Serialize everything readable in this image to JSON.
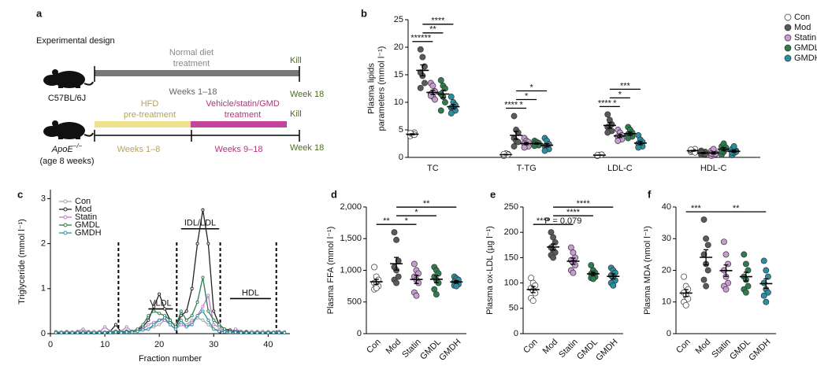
{
  "design": {
    "panel": "a",
    "title": "Experimental design",
    "wild_type": {
      "strain": "C57BL/6J",
      "treatment": [
        "Normal diet",
        "treatment"
      ],
      "kill": "Kill",
      "period": "Weeks 1–18",
      "end": "Week 18"
    },
    "knockout": {
      "strain": "ApoE",
      "strain_sup": "−/−",
      "age": "(age 8 weeks)",
      "pre": [
        "HFD",
        "pre-treatment"
      ],
      "pre_period": "Weeks 1–8",
      "treatment": [
        "Vehicle/statin/GMD",
        "treatment"
      ],
      "treatment_period": "Weeks 9–18",
      "kill": "Kill",
      "end": "Week 18"
    }
  },
  "chart_data": [
    {
      "type": "grouped_dot",
      "panel": "b",
      "ylabel": [
        "Plasma lipids",
        "parameters (mmol l⁻¹)"
      ],
      "categories": [
        "TC",
        "T-TG",
        "LDL-C",
        "HDL-C"
      ],
      "ylim": [
        0,
        25
      ],
      "yticks": [
        0,
        5,
        10,
        15,
        20,
        25
      ],
      "series": [
        {
          "name": "Con",
          "color": "#ffffff",
          "values": [
            4.2,
            0.5,
            0.4,
            1.2
          ],
          "sem": [
            0.1,
            0.05,
            0.03,
            0.08
          ],
          "points": [
            [
              4.0,
              4.3,
              4.5,
              3.9,
              4.2,
              4.1,
              4.4
            ],
            [
              0.3,
              0.5,
              0.6,
              0.4,
              0.7,
              0.5,
              0.6
            ],
            [
              0.3,
              0.4,
              0.5,
              0.3,
              0.4,
              0.5,
              0.4
            ],
            [
              1.0,
              1.2,
              1.5,
              1.3,
              1.1,
              0.9,
              1.4
            ]
          ]
        },
        {
          "name": "Mod",
          "color": "#5a5a5a",
          "values": [
            15.8,
            4.0,
            5.8,
            0.8
          ],
          "sem": [
            1.0,
            0.7,
            0.5,
            0.1
          ],
          "points": [
            [
              19.6,
              18.2,
              16.5,
              15.4,
              14.8,
              13.5,
              12.6
            ],
            [
              7.5,
              5.0,
              4.5,
              3.5,
              3.0,
              2.8,
              2.0
            ],
            [
              7.8,
              6.8,
              6.0,
              5.5,
              5.0,
              4.8,
              4.5
            ],
            [
              0.5,
              0.8,
              1.0,
              1.2,
              0.7,
              0.6,
              0.9
            ]
          ]
        },
        {
          "name": "Statin",
          "color": "#c99bd3",
          "values": [
            11.8,
            2.5,
            3.9,
            0.8
          ],
          "sem": [
            0.4,
            0.2,
            0.3,
            0.2
          ],
          "points": [
            [
              13.5,
              13.0,
              12.0,
              11.5,
              11.0,
              10.5,
              11.2
            ],
            [
              3.5,
              3.0,
              2.8,
              2.5,
              2.2,
              2.0,
              1.8
            ],
            [
              5.0,
              4.5,
              4.0,
              3.8,
              3.5,
              3.3,
              3.0
            ],
            [
              0.3,
              0.5,
              0.8,
              1.2,
              1.5,
              0.6,
              0.7
            ]
          ]
        },
        {
          "name": "GMDL",
          "color": "#2e7d4f",
          "values": [
            11.5,
            2.5,
            4.3,
            1.5
          ],
          "sem": [
            0.7,
            0.1,
            0.3,
            0.3
          ],
          "points": [
            [
              14.0,
              13.0,
              12.5,
              11.5,
              11.0,
              10.0,
              8.5
            ],
            [
              3.0,
              2.8,
              2.6,
              2.4,
              2.3,
              2.2,
              2.1
            ],
            [
              5.5,
              5.0,
              4.5,
              4.2,
              4.0,
              3.8,
              3.5
            ],
            [
              0.5,
              1.0,
              1.5,
              2.0,
              2.5,
              1.8,
              1.2
            ]
          ]
        },
        {
          "name": "GMDH",
          "color": "#2b8fa3",
          "values": [
            9.2,
            2.2,
            2.6,
            1.1
          ],
          "sem": [
            0.4,
            0.3,
            0.3,
            0.2
          ],
          "points": [
            [
              11.0,
              10.0,
              9.5,
              9.0,
              8.8,
              8.5,
              8.0
            ],
            [
              3.5,
              3.0,
              2.4,
              2.0,
              1.8,
              1.5,
              1.2
            ],
            [
              4.0,
              3.2,
              2.8,
              2.5,
              2.2,
              2.0,
              1.8
            ],
            [
              0.4,
              0.8,
              1.2,
              1.5,
              2.0,
              1.0,
              0.9
            ]
          ]
        }
      ],
      "significance": [
        {
          "category": "TC",
          "pair": [
            "Con",
            "Mod"
          ],
          "label": "****"
        },
        {
          "category": "TC",
          "pair": [
            "Mod",
            "Statin"
          ],
          "label": "**"
        },
        {
          "category": "TC",
          "pair": [
            "Mod",
            "GMDL"
          ],
          "label": "**"
        },
        {
          "category": "TC",
          "pair": [
            "Mod",
            "GMDH"
          ],
          "label": "****"
        },
        {
          "category": "T-TG",
          "pair": [
            "Con",
            "Mod"
          ],
          "label": "****"
        },
        {
          "category": "T-TG",
          "pair": [
            "Mod",
            "Statin"
          ],
          "label": "*"
        },
        {
          "category": "T-TG",
          "pair": [
            "Mod",
            "GMDL"
          ],
          "label": "*"
        },
        {
          "category": "T-TG",
          "pair": [
            "Mod",
            "GMDH"
          ],
          "label": "*"
        },
        {
          "category": "LDL-C",
          "pair": [
            "Con",
            "Mod"
          ],
          "label": "****"
        },
        {
          "category": "LDL-C",
          "pair": [
            "Mod",
            "Statin"
          ],
          "label": "*"
        },
        {
          "category": "LDL-C",
          "pair": [
            "Mod",
            "GMDL"
          ],
          "label": "*"
        },
        {
          "category": "LDL-C",
          "pair": [
            "Mod",
            "GMDH"
          ],
          "label": "***"
        }
      ]
    },
    {
      "type": "line",
      "panel": "c",
      "ylabel": "Triglyceride (mmol l⁻¹)",
      "xlabel": "Fraction number",
      "xlim": [
        0,
        44
      ],
      "xticks": [
        0,
        10,
        20,
        30,
        40
      ],
      "ylim": [
        0,
        3.2
      ],
      "yticks": [
        0,
        1,
        2,
        3
      ],
      "x": [
        1,
        2,
        3,
        4,
        5,
        6,
        7,
        8,
        9,
        10,
        11,
        12,
        13,
        14,
        15,
        16,
        17,
        18,
        19,
        20,
        21,
        22,
        23,
        24,
        25,
        26,
        27,
        28,
        29,
        30,
        31,
        32,
        33,
        34,
        35,
        36,
        37,
        38,
        39,
        40,
        41,
        42,
        43
      ],
      "series": [
        {
          "name": "Con",
          "color": "#a6a6a6",
          "values": [
            0.05,
            0.04,
            0.05,
            0.04,
            0.05,
            0.04,
            0.05,
            0.04,
            0.05,
            0.04,
            0.05,
            0.06,
            0.05,
            0.06,
            0.05,
            0.06,
            0.08,
            0.1,
            0.15,
            0.2,
            0.3,
            0.25,
            0.2,
            0.25,
            0.2,
            0.3,
            0.35,
            0.3,
            0.2,
            0.1,
            0.08,
            0.06,
            0.05,
            0.05,
            0.04,
            0.05,
            0.04,
            0.05,
            0.04,
            0.05,
            0.04,
            0.05,
            0.04
          ]
        },
        {
          "name": "Mod",
          "color": "#222222",
          "values": [
            0.02,
            0.02,
            0.03,
            0.02,
            0.03,
            0.02,
            0.03,
            0.02,
            0.03,
            0.02,
            0.05,
            0.2,
            0.03,
            0.05,
            0.05,
            0.08,
            0.15,
            0.3,
            0.6,
            0.88,
            0.55,
            0.3,
            0.15,
            0.4,
            0.5,
            1.0,
            2.0,
            2.75,
            2.0,
            0.5,
            0.2,
            0.1,
            0.08,
            0.05,
            0.05,
            0.04,
            0.03,
            0.03,
            0.03,
            0.02,
            0.02,
            0.02,
            0.02
          ]
        },
        {
          "name": "Statin",
          "color": "#b77cc6",
          "values": [
            0.03,
            0.03,
            0.05,
            0.03,
            0.05,
            0.1,
            0.03,
            0.05,
            0.03,
            0.15,
            0.05,
            0.03,
            0.05,
            0.15,
            0.05,
            0.08,
            0.1,
            0.2,
            0.25,
            0.3,
            0.3,
            0.2,
            0.1,
            0.2,
            0.15,
            0.25,
            0.4,
            0.6,
            0.85,
            0.2,
            0.15,
            0.05,
            0.05,
            0.1,
            0.05,
            0.03,
            0.05,
            0.03,
            0.05,
            0.03,
            0.03,
            0.05,
            0.03
          ]
        },
        {
          "name": "GMDL",
          "color": "#2e7d4f",
          "values": [
            0.03,
            0.02,
            0.03,
            0.02,
            0.03,
            0.02,
            0.03,
            0.02,
            0.03,
            0.02,
            0.03,
            0.05,
            0.03,
            0.05,
            0.05,
            0.1,
            0.2,
            0.4,
            0.5,
            0.45,
            0.4,
            0.3,
            0.15,
            0.5,
            0.3,
            0.4,
            0.7,
            1.25,
            0.5,
            0.3,
            0.2,
            0.1,
            0.05,
            0.04,
            0.03,
            0.03,
            0.02,
            0.03,
            0.02,
            0.03,
            0.02,
            0.03,
            0.02
          ]
        },
        {
          "name": "GMDH",
          "color": "#2b8fa3",
          "values": [
            0.02,
            0.02,
            0.02,
            0.02,
            0.02,
            0.02,
            0.02,
            0.02,
            0.02,
            0.02,
            0.02,
            0.03,
            0.02,
            0.03,
            0.03,
            0.05,
            0.08,
            0.1,
            0.2,
            0.3,
            0.35,
            0.2,
            0.1,
            0.3,
            0.15,
            0.2,
            0.4,
            0.5,
            0.3,
            0.1,
            0.05,
            0.04,
            0.03,
            0.03,
            0.02,
            0.02,
            0.02,
            0.02,
            0.02,
            0.02,
            0.02,
            0.02,
            0.02
          ]
        }
      ],
      "dividers": [
        12.5,
        23.2,
        31.2,
        41.5
      ],
      "annotations": [
        {
          "label": "VLDL",
          "range": [
            18,
            22.5
          ]
        },
        {
          "label": "IDL/LDL",
          "range": [
            24,
            31
          ]
        },
        {
          "label": "HDL",
          "range": [
            33,
            40.5
          ]
        }
      ]
    },
    {
      "type": "dot",
      "panel": "d",
      "ylabel": "Plasma FFA (mmol l⁻¹)",
      "categories": [
        "Con",
        "Mod",
        "Statin",
        "GMDL",
        "GMDH"
      ],
      "colors": [
        "#ffffff",
        "#5a5a5a",
        "#c99bd3",
        "#2e7d4f",
        "#2b8fa3"
      ],
      "ylim": [
        0,
        2000
      ],
      "yticks": [
        0,
        500,
        {
          "value": 1000,
          "label": "1,000"
        },
        {
          "value": 1500,
          "label": "1,500"
        },
        {
          "value": 2000,
          "label": "2,000"
        }
      ],
      "values": [
        819,
        1104,
        856,
        859,
        816
      ],
      "sem": [
        40,
        100,
        65,
        55,
        20
      ],
      "points": [
        [
          1050,
          900,
          850,
          800,
          780,
          750,
          700,
          720
        ],
        [
          1600,
          1480,
          1150,
          1050,
          1000,
          900,
          850,
          800
        ],
        [
          1100,
          1000,
          950,
          900,
          850,
          800,
          650,
          600
        ],
        [
          1050,
          1000,
          950,
          900,
          850,
          800,
          700,
          620
        ],
        [
          900,
          870,
          850,
          820,
          800,
          780,
          760,
          750
        ]
      ],
      "significance": [
        {
          "pair": [
            "Con",
            "Mod"
          ],
          "label": "**"
        },
        {
          "pair": [
            "Mod",
            "Statin"
          ],
          "label": "*"
        },
        {
          "pair": [
            "Mod",
            "GMDL"
          ],
          "label": "*"
        },
        {
          "pair": [
            "Mod",
            "GMDH"
          ],
          "label": "**"
        }
      ]
    },
    {
      "type": "dot",
      "panel": "e",
      "ylabel": "Plasma ox-LDL (µg l⁻¹)",
      "categories": [
        "Con",
        "Mod",
        "Statin",
        "GMDL",
        "GMDH"
      ],
      "colors": [
        "#ffffff",
        "#5a5a5a",
        "#c99bd3",
        "#2e7d4f",
        "#2b8fa3"
      ],
      "ylim": [
        0,
        250
      ],
      "yticks": [
        0,
        50,
        100,
        150,
        200,
        250
      ],
      "values": [
        87,
        171,
        143,
        118,
        113
      ],
      "sem": [
        6,
        6,
        6,
        3,
        5
      ],
      "points": [
        [
          110,
          100,
          95,
          90,
          85,
          80,
          70,
          65
        ],
        [
          200,
          190,
          180,
          170,
          165,
          160,
          155,
          150
        ],
        [
          170,
          160,
          150,
          145,
          140,
          135,
          125,
          120
        ],
        [
          135,
          125,
          120,
          118,
          115,
          112,
          110,
          108
        ],
        [
          130,
          125,
          120,
          115,
          110,
          105,
          100,
          95
        ]
      ],
      "significance": [
        {
          "pair": [
            "Con",
            "Mod"
          ],
          "label": "****"
        },
        {
          "pair": [
            "Mod",
            "Statin"
          ],
          "label": "P = 0.079"
        },
        {
          "pair": [
            "Mod",
            "GMDL"
          ],
          "label": "****"
        },
        {
          "pair": [
            "Mod",
            "GMDH"
          ],
          "label": "****"
        }
      ]
    },
    {
      "type": "dot",
      "panel": "f",
      "ylabel": "Plasma MDA (nmol l⁻¹)",
      "categories": [
        "Con",
        "Mod",
        "Statin",
        "GMDL",
        "GMDH"
      ],
      "colors": [
        "#ffffff",
        "#5a5a5a",
        "#c99bd3",
        "#2e7d4f",
        "#2b8fa3"
      ],
      "ylim": [
        0,
        40
      ],
      "yticks": [
        0,
        10,
        20,
        30,
        40
      ],
      "values": [
        12.8,
        24.1,
        19.9,
        18,
        15.8
      ],
      "sem": [
        1.1,
        2.4,
        1.8,
        1.4,
        1.5
      ],
      "points": [
        [
          18,
          15,
          14,
          13,
          12,
          11,
          10,
          9
        ],
        [
          36,
          30,
          28,
          25,
          22,
          20,
          17,
          15
        ],
        [
          29,
          25,
          22,
          20,
          18,
          16,
          15,
          14
        ],
        [
          25,
          22,
          20,
          18,
          17,
          15,
          14,
          13
        ],
        [
          23,
          20,
          18,
          16,
          14,
          13,
          12,
          10
        ]
      ],
      "significance": [
        {
          "pair": [
            "Con",
            "Mod"
          ],
          "label": "***"
        },
        {
          "pair": [
            "Mod",
            "GMDH"
          ],
          "label": "**"
        }
      ]
    }
  ]
}
